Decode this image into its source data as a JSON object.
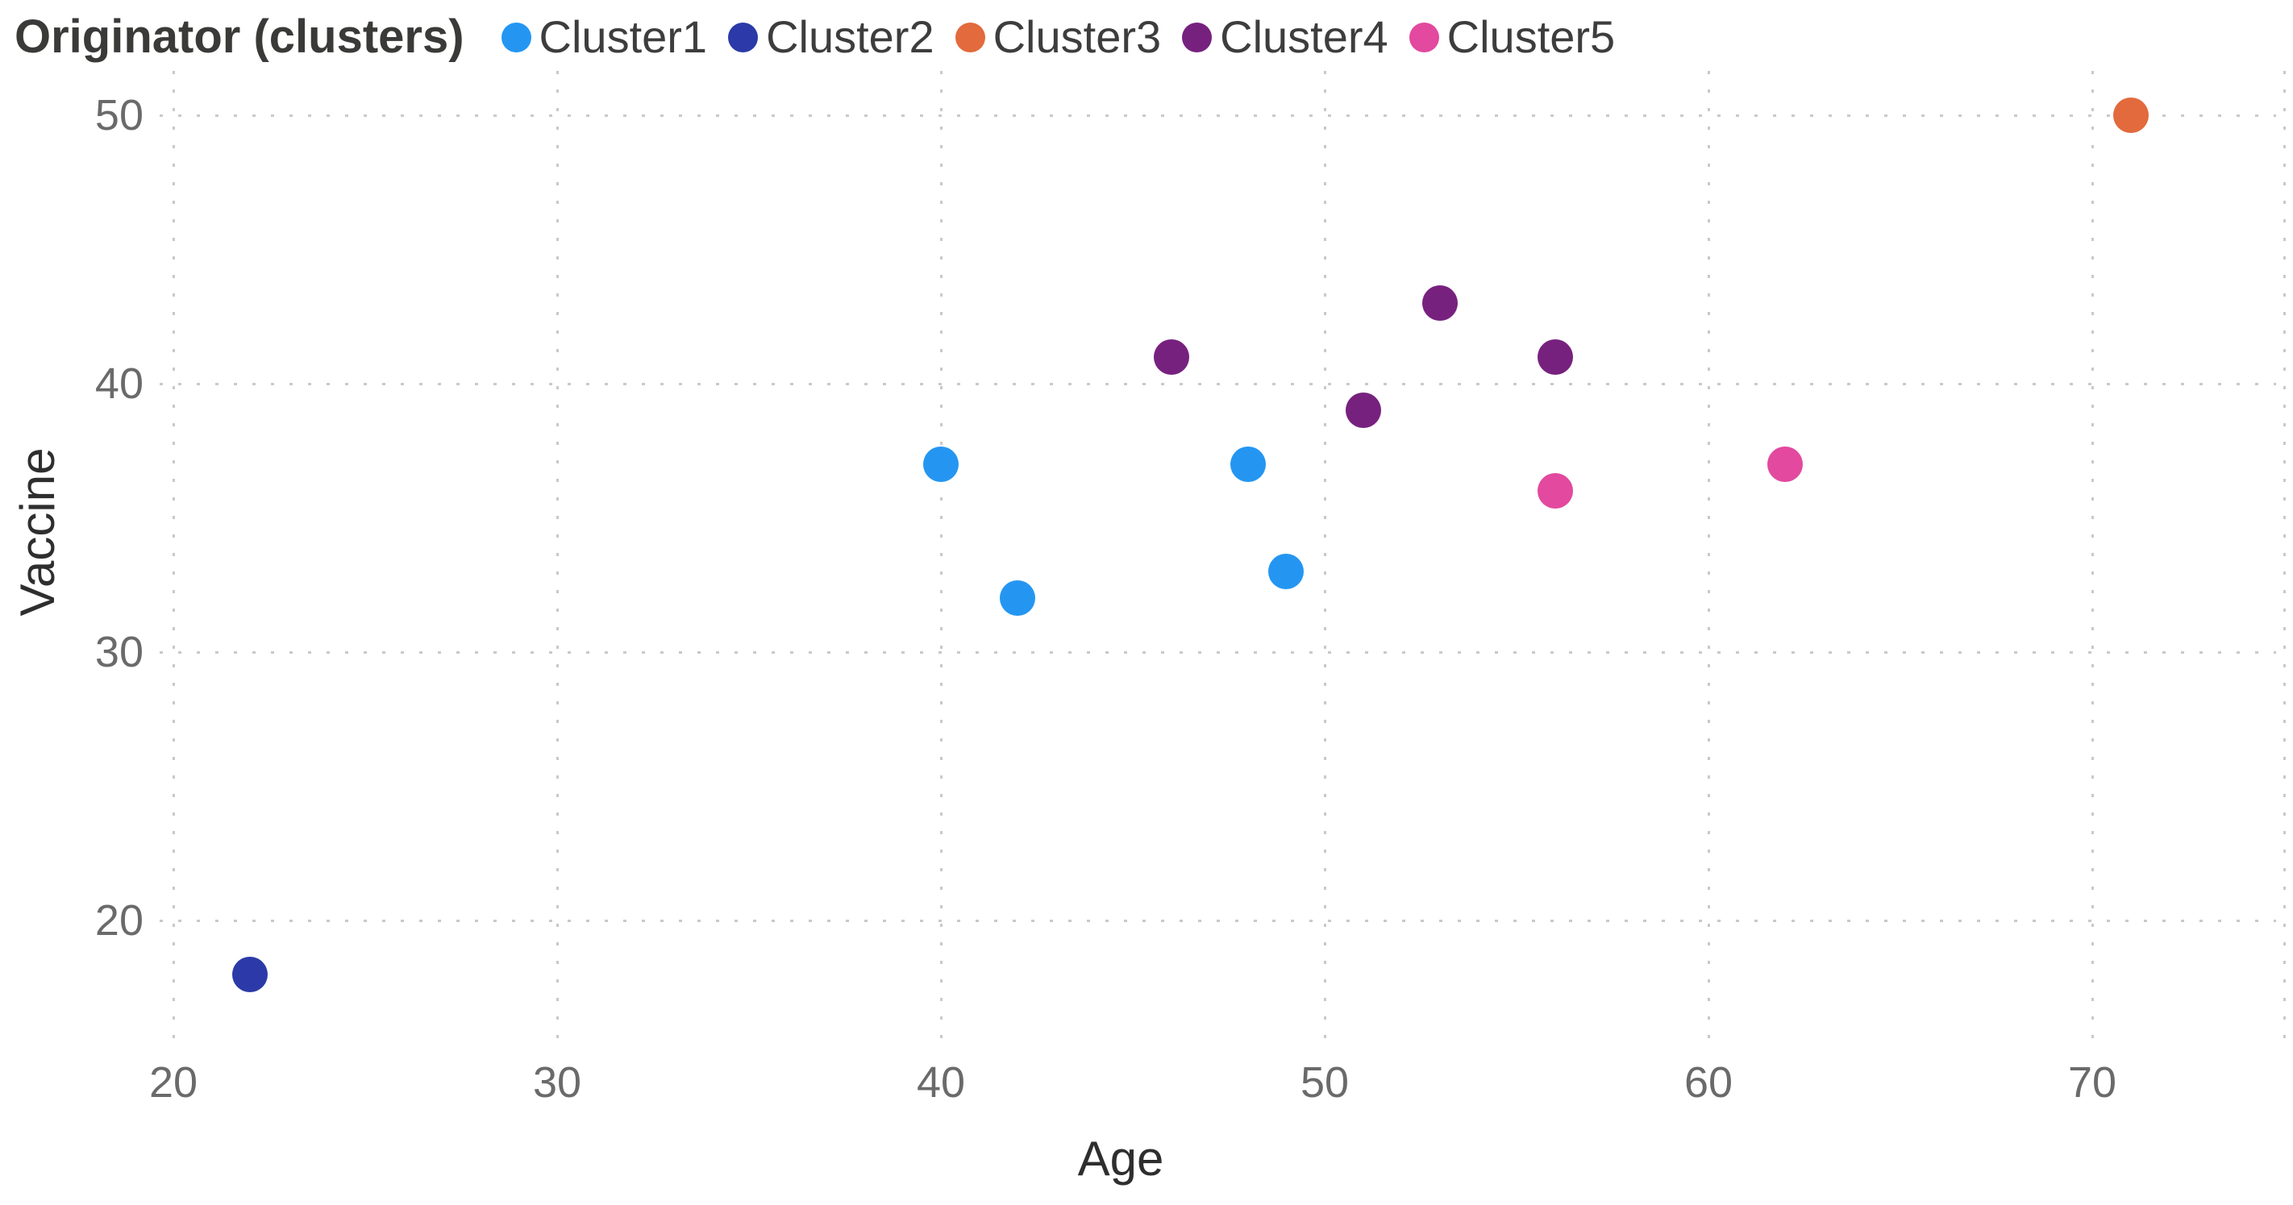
{
  "chart_data": {
    "type": "scatter",
    "legend_title": "Originator (clusters)",
    "xlabel": "Age",
    "ylabel": "Vaccine",
    "xlim": [
      20,
      75.2
    ],
    "ylim": [
      15.5,
      51.8
    ],
    "x_ticks": [
      20,
      30,
      40,
      50,
      60,
      70
    ],
    "y_ticks": [
      50,
      40,
      30,
      20
    ],
    "x_gridlines": [
      20,
      30,
      40,
      50,
      60,
      70,
      75
    ],
    "y_gridlines": [
      50,
      40,
      30,
      20
    ],
    "grid_style": "dotted",
    "legend_position": "top-left",
    "series": [
      {
        "name": "Cluster1",
        "color": "#2496f2",
        "points": [
          {
            "x": 40,
            "y": 37
          },
          {
            "x": 42,
            "y": 32
          },
          {
            "x": 48,
            "y": 37
          },
          {
            "x": 49,
            "y": 33
          }
        ]
      },
      {
        "name": "Cluster2",
        "color": "#2b3aa8",
        "points": [
          {
            "x": 22,
            "y": 18
          }
        ]
      },
      {
        "name": "Cluster3",
        "color": "#e26a3c",
        "points": [
          {
            "x": 71,
            "y": 50
          }
        ]
      },
      {
        "name": "Cluster4",
        "color": "#77217f",
        "points": [
          {
            "x": 46,
            "y": 41
          },
          {
            "x": 51,
            "y": 39
          },
          {
            "x": 53,
            "y": 43
          },
          {
            "x": 56,
            "y": 41
          }
        ]
      },
      {
        "name": "Cluster5",
        "color": "#e2499f",
        "points": [
          {
            "x": 56,
            "y": 36
          },
          {
            "x": 62,
            "y": 37
          }
        ]
      }
    ]
  }
}
